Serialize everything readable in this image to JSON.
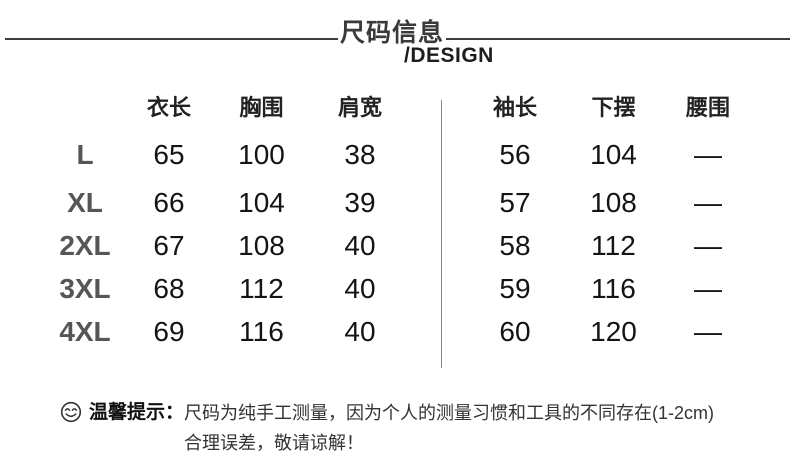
{
  "header": {
    "title": "尺码信息",
    "subtitle": "/DESIGN"
  },
  "chart_data": {
    "type": "table",
    "title": "尺码信息",
    "subtitle": "/DESIGN",
    "columns": [
      "",
      "衣长",
      "胸围",
      "肩宽",
      "袖长",
      "下摆",
      "腰围"
    ],
    "rows": [
      [
        "L",
        "65",
        "100",
        "38",
        "56",
        "104",
        "—"
      ],
      [
        "XL",
        "66",
        "104",
        "39",
        "57",
        "108",
        "—"
      ],
      [
        "2XL",
        "67",
        "108",
        "40",
        "58",
        "112",
        "—"
      ],
      [
        "3XL",
        "68",
        "112",
        "40",
        "59",
        "116",
        "—"
      ],
      [
        "4XL",
        "69",
        "116",
        "40",
        "60",
        "120",
        "—"
      ]
    ],
    "layout": "vertical divider between 肩宽 and 袖长 columns"
  },
  "tip": {
    "icon": "smiley-icon",
    "label": "温馨提示：",
    "line1": "尺码为纯手工测量，因为个人的测量习惯和工具的不同存在(1-2cm)",
    "line2": "合理误差，敬请谅解！"
  },
  "colors": {
    "title": "#3a3a3a",
    "header_line": "#3d3d3d",
    "divider": "#858585",
    "size_label": "#565656",
    "value_text": "#141414"
  }
}
